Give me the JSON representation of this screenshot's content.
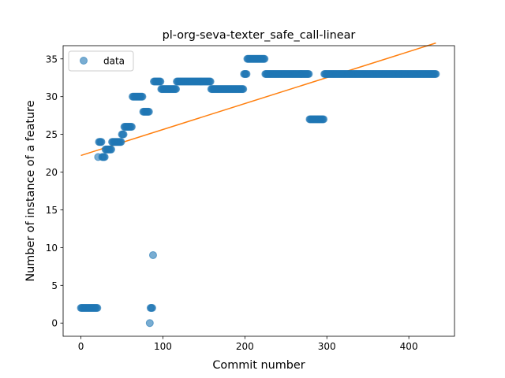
{
  "chart_data": {
    "type": "scatter",
    "title": "pl-org-seva-texter_safe_call-linear",
    "xlabel": "Commit number",
    "ylabel": "Number of instance of a feature",
    "xlim": [
      -21.7,
      455.7
    ],
    "ylim": [
      -1.75,
      36.75
    ],
    "xticks": [
      0,
      100,
      200,
      300,
      400
    ],
    "yticks": [
      0,
      5,
      10,
      15,
      20,
      25,
      30,
      35
    ],
    "grid": false,
    "legend": {
      "placement": "upper-left",
      "entries": [
        "data"
      ]
    },
    "colors": {
      "data": "#1f77b4",
      "fit": "#ff7f0e"
    },
    "series": [
      {
        "name": "data",
        "kind": "scatter",
        "segments": [
          {
            "x": [
              0,
              20
            ],
            "y": 2
          },
          {
            "x": [
              21,
              21
            ],
            "y": 22
          },
          {
            "x": [
              22,
              25
            ],
            "y": 24
          },
          {
            "x": [
              26,
              29
            ],
            "y": 22
          },
          {
            "x": [
              30,
              37
            ],
            "y": 23
          },
          {
            "x": [
              38,
              49
            ],
            "y": 24
          },
          {
            "x": [
              50,
              52
            ],
            "y": 25
          },
          {
            "x": [
              53,
              62
            ],
            "y": 26
          },
          {
            "x": [
              63,
              75
            ],
            "y": 30
          },
          {
            "x": [
              76,
              83
            ],
            "y": 28
          },
          {
            "x": [
              84,
              84
            ],
            "y": 0
          },
          {
            "x": [
              85,
              87
            ],
            "y": 2
          },
          {
            "x": [
              88,
              88
            ],
            "y": 9
          },
          {
            "x": [
              89,
              97
            ],
            "y": 32
          },
          {
            "x": [
              98,
              116
            ],
            "y": 31
          },
          {
            "x": [
              117,
              158
            ],
            "y": 32
          },
          {
            "x": [
              159,
              198
            ],
            "y": 31
          },
          {
            "x": [
              199,
              202
            ],
            "y": 33
          },
          {
            "x": [
              203,
              224
            ],
            "y": 35
          },
          {
            "x": [
              225,
              278
            ],
            "y": 33
          },
          {
            "x": [
              279,
              296
            ],
            "y": 27
          },
          {
            "x": [
              297,
              433
            ],
            "y": 33
          }
        ]
      },
      {
        "kind": "line",
        "x": [
          0,
          433
        ],
        "y": [
          22.2,
          37.1
        ]
      }
    ]
  }
}
